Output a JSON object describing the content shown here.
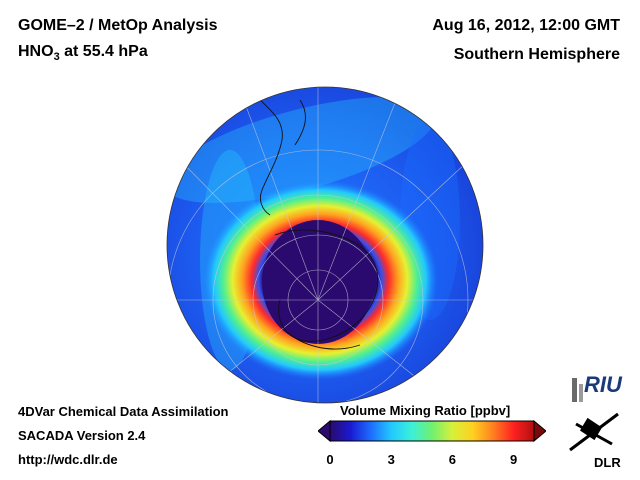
{
  "header": {
    "left_line1": "GOME–2 / MetOp Analysis",
    "left_line2_prefix": "HNO",
    "left_line2_sub": "3",
    "left_line2_suffix": " at 55.4 hPa",
    "right_line1": "Aug 16, 2012, 12:00 GMT",
    "right_line2": "Southern Hemisphere"
  },
  "footer": {
    "line1": "4DVar Chemical Data Assimilation",
    "line2": "SACADA Version 2.4",
    "line3": "http://wdc.dlr.de"
  },
  "colorbar": {
    "title": "Volume Mixing Ratio [ppbv]",
    "ticks": [
      "0",
      "3",
      "6",
      "9"
    ],
    "tick_values": [
      0,
      3,
      6,
      9
    ],
    "range": [
      0,
      10
    ],
    "colors": [
      "#2a0a6e",
      "#1a1ad0",
      "#1d6dff",
      "#22c8ff",
      "#3cf0d8",
      "#70f070",
      "#d8f03a",
      "#ffd020",
      "#ff8020",
      "#ff2020",
      "#b01010"
    ]
  },
  "logos": {
    "riu": "RIU",
    "dlr": "DLR"
  },
  "colors": {
    "background_blue": "#1d5cf0",
    "ocean_inner": "#2a0a6e",
    "ring_red": "#ff2a2a"
  }
}
